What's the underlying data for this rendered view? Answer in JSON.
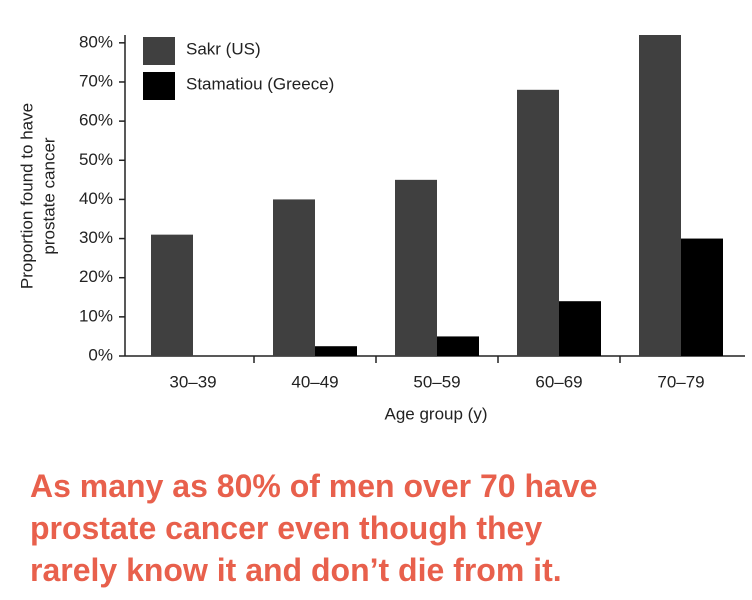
{
  "chart_data": {
    "type": "bar",
    "ylabel": [
      "Proportion found to have",
      "prostate cancer"
    ],
    "xlabel": "Age group (y)",
    "categories": [
      "30–39",
      "40–49",
      "50–59",
      "60–69",
      "70–79"
    ],
    "series": [
      {
        "name": "Sakr (US)",
        "color": "#404040",
        "values": [
          31,
          40,
          45,
          68,
          82
        ]
      },
      {
        "name": "Stamatiou (Greece)",
        "color": "#000000",
        "values": [
          0,
          2.5,
          5,
          14,
          30
        ]
      }
    ],
    "ylim": [
      0,
      82
    ],
    "yticks": [
      {
        "value": 0,
        "label": "0%"
      },
      {
        "value": 10,
        "label": "10%"
      },
      {
        "value": 20,
        "label": "20%"
      },
      {
        "value": 30,
        "label": "30%"
      },
      {
        "value": 40,
        "label": "40%"
      },
      {
        "value": 50,
        "label": "50%"
      },
      {
        "value": 60,
        "label": "60%"
      },
      {
        "value": 70,
        "label": "70%"
      },
      {
        "value": 80,
        "label": "80%"
      }
    ],
    "legend": "top-left",
    "caption": [
      "As many as 80% of men over 70 have",
      "prostate cancer even though they",
      "rarely know it and don’t die from it."
    ]
  }
}
